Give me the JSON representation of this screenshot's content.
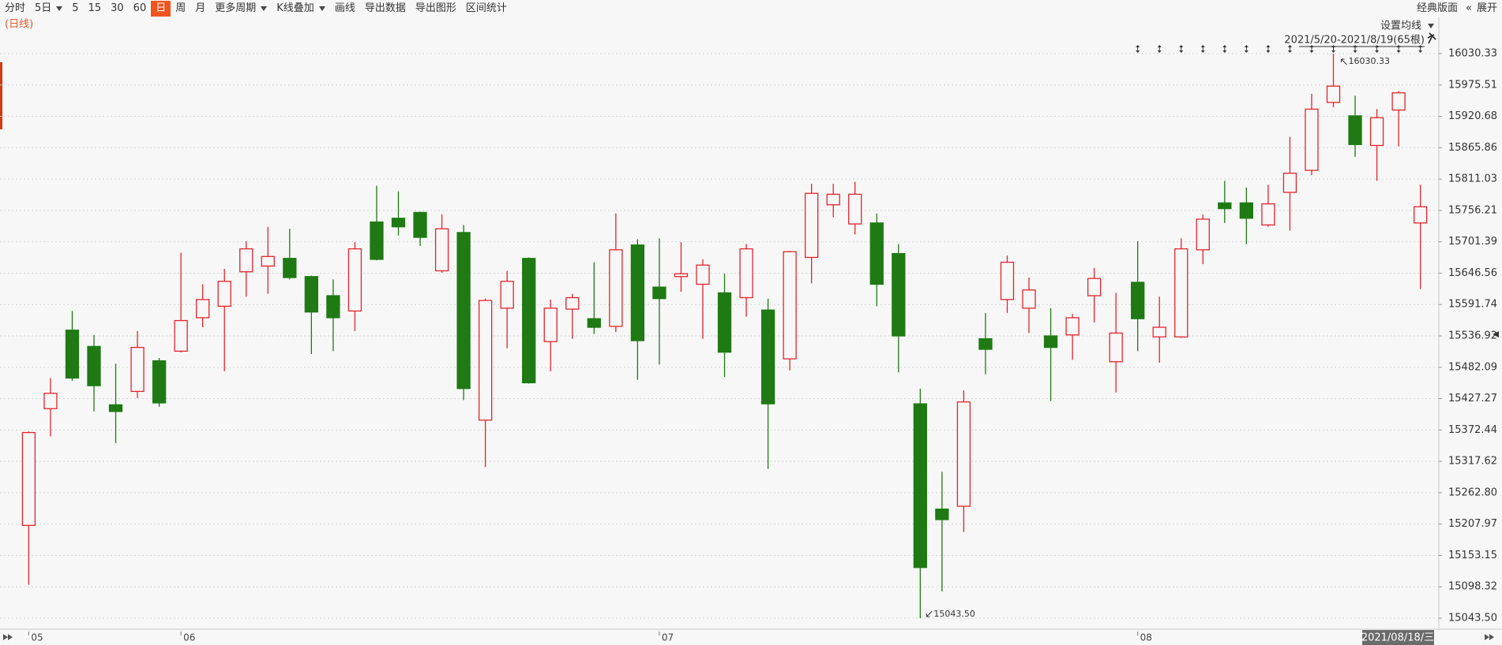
{
  "toolbar": {
    "items": [
      "分时",
      "5日",
      "5",
      "15",
      "30",
      "60",
      "日",
      "周",
      "月",
      "更多周期",
      "K线叠加",
      "画线",
      "导出数据",
      "导出图形",
      "区间统计"
    ],
    "right": [
      "经典版面",
      "展开"
    ]
  },
  "chart_data": {
    "type": "candlestick",
    "label": "(日线)",
    "ma_button": "设置均线",
    "range_label": "2021/5/20-2021/8/19(65根)",
    "cursor_date": "2021/08/18/三",
    "annotations": [
      "16030.33",
      "15043.50"
    ],
    "up_color": "#e3242b",
    "down_color": "#1f7a14",
    "grid": true,
    "ylim": [
      15043.5,
      16030.33
    ],
    "yticks": [
      {
        "value": 15043.5,
        "label": "15043.50"
      },
      15098.32,
      15153.15,
      15207.97,
      {
        "value": 15262.8,
        "label": "15262.80"
      },
      15317.62,
      15372.44,
      15427.27,
      15482.09,
      15536.92,
      15591.74,
      15646.56,
      15701.39,
      15756.21,
      15811.03,
      15865.86,
      15920.68,
      15975.51,
      16030.33
    ],
    "categories": [
      "05",
      null,
      null,
      null,
      null,
      null,
      null,
      "06",
      null,
      null,
      null,
      null,
      null,
      null,
      null,
      null,
      null,
      null,
      null,
      null,
      null,
      null,
      null,
      null,
      null,
      null,
      null,
      null,
      null,
      "07",
      null,
      null,
      null,
      null,
      null,
      null,
      null,
      null,
      null,
      null,
      null,
      null,
      null,
      null,
      null,
      null,
      null,
      null,
      null,
      null,
      null,
      "08",
      null,
      null,
      null,
      null,
      null,
      null,
      null,
      null,
      null,
      null,
      null,
      null,
      null
    ],
    "open": [
      15205.7,
      15409.8,
      15547.0,
      15518.5,
      15416.5,
      15439.9,
      15493.4,
      15510.2,
      15568.7,
      15588.8,
      15649.0,
      15659.0,
      15672.4,
      15640.6,
      15607.2,
      15580.4,
      15736.0,
      15742.6,
      15752.7,
      15650.7,
      15717.6,
      15389.7,
      15585.4,
      15672.4,
      15526.9,
      15583.7,
      15567.0,
      15553.6,
      15695.8,
      15622.2,
      15640.6,
      15627.2,
      15612.2,
      15603.8,
      15582.1,
      15496.8,
      15674.1,
      15766.1,
      15732.6,
      15734.3,
      15680.8,
      15418.2,
      15234.2,
      15239.2,
      15531.9,
      15600.5,
      15585.4,
      15536.9,
      15538.6,
      15607.2,
      15491.8,
      15630.6,
      15535.2,
      15535.2,
      15687.4,
      15769.4,
      15769.4,
      15730.9,
      15787.8,
      15826.3,
      15945.0,
      15921.6,
      15869.8,
      15931.7,
      15734.3
    ],
    "high": [
      15370.0,
      15463.3,
      15580.4,
      15538.6,
      15488.4,
      15545.3,
      15498.4,
      15682.4,
      15627.2,
      15654.0,
      15702.5,
      15727.6,
      15724.2,
      15642.3,
      15635.6,
      15700.8,
      15799.5,
      15789.5,
      15754.0,
      15749.3,
      15730.9,
      15602.1,
      15650.7,
      15674.0,
      15600.5,
      15610.5,
      15665.7,
      15751.0,
      15705.8,
      15707.5,
      15700.8,
      15670.7,
      15645.6,
      15697.5,
      15602.1,
      15685.5,
      15802.9,
      15802.9,
      15806.2,
      15751.0,
      15697.5,
      15444.9,
      15299.4,
      15441.6,
      15577.1,
      15677.4,
      15638.9,
      15585.4,
      15575.4,
      15655.7,
      15612.2,
      15702.5,
      15605.5,
      15707.5,
      15749.3,
      15807.9,
      15796.2,
      15801.2,
      15884.8,
      15960.1,
      16030.33,
      15956.7,
      15933.3,
      15965.1,
      15801.2
    ],
    "low": [
      15102.0,
      15361.3,
      15458.3,
      15404.8,
      15349.6,
      15428.2,
      15413.1,
      15508.0,
      15552.0,
      15475.0,
      15605.5,
      15610.5,
      15635.6,
      15505.1,
      15510.2,
      15545.3,
      15669.0,
      15712.5,
      15694.1,
      15647.3,
      15424.8,
      15307.8,
      15515.2,
      15453.5,
      15475.0,
      15531.9,
      15540.3,
      15543.6,
      15460.0,
      15486.7,
      15613.9,
      15531.9,
      15465.0,
      15570.4,
      15304.4,
      15476.7,
      15628.9,
      15744.3,
      15714.2,
      15588.8,
      15473.4,
      15043.5,
      15090.3,
      15194.0,
      15470.0,
      15577.1,
      15541.9,
      15423.2,
      15495.1,
      15560.3,
      15438.2,
      15510.2,
      15490.1,
      15533.5,
      15662.4,
      15734.3,
      15697.5,
      15727.6,
      15720.9,
      15817.9,
      15936.7,
      15849.7,
      15807.9,
      15868.1,
      15618.9
    ],
    "close": [
      15368.0,
      15436.6,
      15463.3,
      15449.9,
      15404.8,
      15516.8,
      15419.8,
      15563.7,
      15600.5,
      15632.3,
      15689.1,
      15675.7,
      15638.9,
      15578.7,
      15568.7,
      15689.1,
      15670.7,
      15727.6,
      15709.2,
      15724.2,
      15444.9,
      15598.8,
      15632.3,
      15455.0,
      15585.4,
      15603.8,
      15552.0,
      15687.4,
      15528.6,
      15602.1,
      15645.6,
      15660.7,
      15508.5,
      15689.1,
      15418.2,
      15684.1,
      15786.1,
      15784.5,
      15784.5,
      15627.2,
      15536.9,
      15132.1,
      15215.8,
      15421.5,
      15513.5,
      15665.7,
      15617.2,
      15516.8,
      15568.7,
      15637.3,
      15541.9,
      15567.0,
      15552.0,
      15689.1,
      15741.0,
      15759.4,
      15742.6,
      15767.7,
      15821.3,
      15933.3,
      15973.5,
      15871.4,
      15918.3,
      15961.8,
      15762.7
    ]
  }
}
